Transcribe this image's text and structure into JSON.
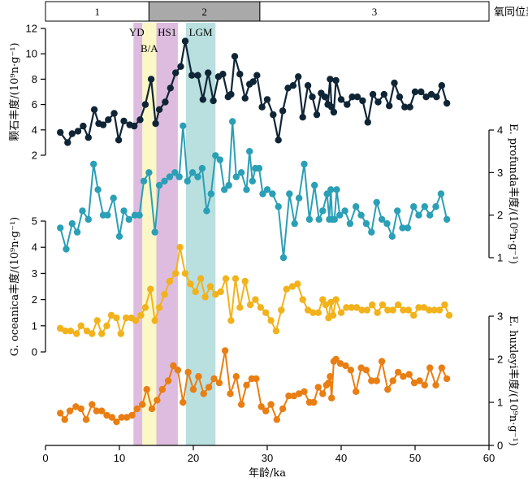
{
  "chart_data": {
    "type": "line",
    "title": "",
    "x_axis": {
      "label": "年龄/ka",
      "range": [
        0,
        60
      ],
      "ticks": [
        "0",
        "10",
        "20",
        "30",
        "40",
        "50",
        "60"
      ]
    },
    "isotope_stage": {
      "title": "氧同位素期",
      "stages": [
        {
          "label": "1",
          "start": 0,
          "end": 14,
          "color": "#ffffff"
        },
        {
          "label": "2",
          "start": 14,
          "end": 29,
          "color": "#a9a9a9"
        },
        {
          "label": "3",
          "start": 29,
          "end": 60,
          "color": "#ffffff"
        }
      ]
    },
    "events": [
      {
        "label": "YD",
        "start": 11.9,
        "end": 13.1,
        "color": "#ddbcdf"
      },
      {
        "label": "B/A",
        "start": 13.1,
        "end": 15.0,
        "color": "#fbf7c6"
      },
      {
        "label": "HS1",
        "start": 15.0,
        "end": 17.9,
        "color": "#ddbcdf"
      },
      {
        "label": "LGM",
        "start": 19.0,
        "end": 23.0,
        "color": "#b9dfdf"
      }
    ],
    "series": [
      {
        "name": "颗石丰度/(10⁹n·g⁻¹)",
        "axis_side": "left",
        "color": "#0f2536",
        "ylim": [
          2,
          12
        ],
        "ticks": [
          "2",
          "4",
          "6",
          "8",
          "10",
          "12"
        ],
        "x": [
          2.0,
          3.0,
          3.6,
          4.4,
          5.1,
          5.8,
          6.6,
          7.2,
          7.8,
          8.5,
          9.3,
          9.9,
          10.6,
          11.4,
          12.0,
          12.8,
          13.5,
          14.3,
          14.9,
          15.4,
          16.2,
          16.9,
          17.6,
          18.3,
          18.9,
          19.8,
          20.6,
          21.3,
          22.0,
          22.7,
          23.4,
          24.0,
          24.7,
          25.1,
          25.6,
          26.3,
          27.0,
          27.6,
          28.1,
          28.6,
          29.3,
          30.0,
          30.8,
          31.5,
          32.1,
          32.8,
          33.5,
          34.2,
          34.8,
          35.5,
          36.1,
          36.7,
          37.3,
          37.8,
          38.2,
          38.5,
          38.7,
          39.0,
          39.3,
          40.0,
          40.8,
          41.5,
          42.2,
          42.9,
          43.6,
          44.3,
          45.0,
          45.8,
          46.5,
          47.2,
          47.9,
          48.6,
          49.3,
          50.0,
          50.8,
          51.5,
          52.2,
          52.9,
          53.6,
          54.3
        ],
        "y": [
          3.8,
          3.0,
          3.7,
          3.9,
          4.3,
          3.4,
          5.6,
          4.5,
          4.4,
          4.8,
          5.3,
          3.2,
          4.7,
          4.4,
          4.3,
          4.8,
          6.0,
          8.0,
          4.5,
          5.6,
          6.2,
          7.3,
          8.5,
          9.0,
          11.0,
          8.3,
          8.3,
          6.4,
          8.5,
          6.3,
          8.2,
          8.4,
          6.6,
          6.8,
          9.8,
          8.4,
          6.5,
          7.6,
          7.8,
          8.3,
          5.8,
          6.4,
          5.2,
          3.2,
          5.5,
          7.3,
          7.5,
          8.2,
          5.0,
          7.5,
          6.6,
          5.2,
          6.9,
          6.6,
          6.0,
          8.0,
          5.8,
          5.4,
          7.9,
          6.4,
          6.0,
          6.6,
          6.6,
          6.3,
          4.6,
          6.8,
          6.2,
          6.8,
          5.9,
          7.7,
          6.6,
          5.8,
          5.8,
          7.0,
          7.0,
          6.6,
          6.8,
          6.6,
          7.5,
          6.1
        ]
      },
      {
        "name": "E. profunda丰度/(10⁹n·g⁻¹)",
        "axis_side": "right",
        "color": "#2b9fb6",
        "ylim": [
          1,
          4
        ],
        "ticks": [
          "1",
          "2",
          "3",
          "4"
        ],
        "x": [
          2.0,
          2.8,
          3.6,
          4.3,
          5.0,
          5.8,
          6.5,
          7.1,
          7.8,
          8.4,
          9.2,
          10.0,
          10.6,
          11.3,
          12.1,
          12.7,
          13.3,
          14.0,
          14.8,
          15.4,
          16.1,
          16.8,
          17.5,
          18.1,
          18.6,
          19.2,
          19.9,
          20.6,
          21.2,
          21.8,
          22.4,
          23.0,
          23.6,
          24.2,
          24.8,
          25.3,
          25.8,
          26.5,
          27.2,
          27.6,
          28.0,
          28.4,
          28.9,
          29.4,
          30.0,
          30.7,
          31.5,
          32.2,
          33.0,
          33.7,
          34.3,
          35.0,
          35.7,
          36.4,
          37.0,
          37.5,
          38.1,
          38.4,
          38.6,
          38.8,
          39.1,
          39.4,
          39.8,
          40.5,
          41.2,
          42.0,
          42.7,
          43.4,
          44.1,
          44.8,
          45.5,
          46.2,
          46.9,
          47.6,
          48.3,
          49.0,
          49.8,
          50.5,
          51.3,
          52.0,
          52.8,
          53.5,
          54.3
        ],
        "y": [
          1.7,
          1.2,
          1.8,
          1.6,
          2.1,
          1.9,
          3.2,
          2.6,
          2.0,
          2.0,
          2.4,
          1.5,
          2.1,
          1.9,
          2.0,
          2.0,
          2.8,
          3.0,
          1.6,
          2.7,
          2.8,
          2.9,
          3.0,
          2.9,
          4.1,
          2.8,
          3.0,
          2.9,
          3.1,
          2.1,
          2.5,
          3.4,
          3.3,
          2.6,
          2.7,
          4.2,
          2.9,
          3.0,
          2.6,
          3.5,
          2.8,
          3.1,
          3.1,
          2.5,
          2.6,
          2.5,
          2.2,
          1.0,
          2.5,
          1.8,
          2.4,
          3.2,
          1.9,
          2.7,
          1.9,
          2.1,
          2.5,
          1.9,
          2.6,
          1.9,
          1.9,
          2.6,
          2.0,
          2.1,
          1.8,
          2.2,
          2.0,
          1.8,
          1.6,
          2.3,
          1.9,
          1.8,
          1.5,
          2.1,
          1.7,
          1.7,
          2.2,
          2.0,
          2.2,
          2.0,
          2.2,
          2.5,
          1.9
        ]
      },
      {
        "name": "G. oceanica丰度/(10⁹n·g⁻¹)",
        "axis_side": "left",
        "color": "#f2b21b",
        "ylim": [
          0,
          5
        ],
        "ticks": [
          "0",
          "1",
          "2",
          "3",
          "4",
          "5"
        ],
        "x": [
          2.0,
          2.7,
          3.4,
          4.2,
          4.8,
          5.6,
          6.3,
          7.0,
          7.6,
          8.3,
          8.9,
          9.6,
          10.2,
          10.9,
          11.6,
          12.2,
          12.9,
          13.5,
          14.2,
          14.8,
          15.4,
          16.1,
          16.8,
          17.6,
          18.2,
          18.9,
          19.6,
          20.3,
          21.0,
          21.6,
          22.3,
          23.0,
          23.7,
          24.4,
          25.1,
          25.7,
          26.3,
          27.0,
          27.7,
          28.4,
          29.1,
          29.8,
          30.5,
          31.2,
          31.9,
          32.6,
          33.4,
          34.1,
          34.8,
          35.5,
          36.2,
          36.9,
          37.5,
          37.9,
          38.3,
          38.6,
          38.9,
          39.3,
          40.0,
          40.7,
          41.4,
          42.1,
          42.8,
          43.5,
          44.2,
          44.9,
          45.6,
          46.3,
          47.0,
          47.7,
          48.4,
          49.1,
          49.8,
          50.5,
          51.2,
          51.9,
          52.6,
          53.3,
          54.0,
          54.6
        ],
        "y": [
          0.9,
          0.8,
          0.8,
          0.7,
          1.0,
          0.8,
          0.7,
          1.2,
          0.7,
          1.0,
          1.4,
          1.3,
          0.7,
          1.3,
          1.3,
          1.2,
          1.4,
          1.7,
          2.4,
          1.2,
          1.7,
          2.2,
          2.7,
          3.0,
          4.0,
          3.0,
          2.6,
          2.3,
          2.8,
          2.1,
          2.5,
          2.2,
          2.3,
          2.8,
          1.2,
          2.8,
          1.7,
          2.7,
          1.8,
          2.0,
          1.7,
          1.5,
          1.2,
          0.8,
          1.6,
          2.4,
          2.5,
          2.6,
          2.0,
          1.6,
          1.5,
          1.5,
          2.0,
          1.8,
          1.3,
          1.9,
          1.4,
          2.0,
          1.5,
          1.7,
          1.7,
          1.7,
          1.6,
          1.6,
          1.8,
          1.5,
          1.8,
          1.6,
          1.6,
          1.8,
          1.6,
          1.6,
          1.4,
          1.7,
          1.7,
          1.6,
          1.6,
          1.6,
          1.8,
          1.4
        ]
      },
      {
        "name": "E. huxleyi丰度/(10⁹n·g⁻¹)",
        "axis_side": "right",
        "color": "#e97e13",
        "ylim": [
          0,
          3
        ],
        "ticks": [
          "0",
          "1",
          "2",
          "3"
        ],
        "x": [
          2.0,
          2.6,
          3.3,
          4.1,
          4.8,
          5.5,
          6.3,
          6.9,
          7.6,
          8.3,
          9.0,
          9.6,
          10.3,
          11.0,
          11.7,
          12.4,
          13.1,
          13.7,
          14.4,
          15.1,
          15.8,
          16.6,
          17.3,
          17.9,
          18.6,
          19.3,
          20.0,
          20.7,
          21.4,
          22.1,
          22.8,
          23.5,
          24.3,
          25.0,
          25.8,
          26.5,
          27.2,
          27.9,
          28.5,
          29.2,
          29.8,
          30.5,
          31.3,
          32.1,
          32.9,
          33.6,
          34.3,
          35.0,
          35.7,
          36.3,
          36.9,
          37.5,
          38.0,
          38.3,
          38.5,
          38.7,
          39.0,
          39.3,
          39.9,
          40.6,
          41.3,
          42.0,
          42.7,
          43.4,
          44.1,
          44.8,
          45.5,
          46.3,
          47.0,
          47.7,
          48.4,
          49.2,
          49.9,
          50.6,
          51.3,
          52.0,
          52.8,
          53.6,
          54.3
        ],
        "y": [
          0.75,
          0.6,
          0.8,
          0.9,
          0.85,
          0.6,
          0.95,
          0.8,
          0.8,
          0.7,
          0.65,
          0.55,
          0.65,
          0.65,
          0.7,
          0.85,
          0.95,
          1.3,
          0.85,
          1.05,
          1.3,
          1.5,
          1.85,
          1.75,
          1.0,
          1.7,
          1.3,
          1.6,
          1.2,
          1.35,
          1.55,
          1.45,
          2.2,
          1.2,
          1.6,
          0.95,
          1.4,
          1.55,
          1.55,
          0.9,
          0.8,
          0.95,
          0.6,
          0.85,
          1.15,
          1.15,
          1.2,
          1.25,
          1.0,
          1.0,
          1.35,
          1.2,
          1.4,
          1.45,
          1.6,
          1.1,
          1.95,
          2.0,
          1.9,
          1.85,
          1.75,
          1.25,
          1.8,
          1.75,
          1.5,
          1.5,
          1.95,
          1.3,
          1.5,
          1.7,
          1.6,
          1.65,
          1.45,
          1.5,
          1.4,
          1.8,
          1.4,
          1.8,
          1.55
        ]
      }
    ]
  }
}
